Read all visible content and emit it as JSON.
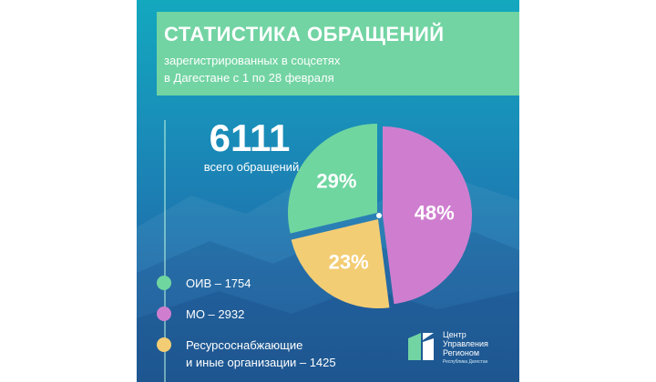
{
  "header": {
    "title": "СТАТИСТИКА ОБРАЩЕНИЙ",
    "subtitle_line1": "зарегистрированных в соцсетях",
    "subtitle_line2": "в Дагестане с 1 по 28 февраля"
  },
  "total": {
    "value": "6111",
    "label": "всего обращений"
  },
  "colors": {
    "oiv": "#6fd6a0",
    "mo": "#cf7ecf",
    "res": "#f3cd74",
    "accent": "#72d4a3"
  },
  "chart_data": {
    "type": "pie",
    "slices": [
      {
        "key": "mo",
        "label": "МО",
        "value": 2932,
        "percent_label": "48%"
      },
      {
        "key": "res",
        "label": "Ресурсоснабжающие и иные организации",
        "value": 1425,
        "percent_label": "23%"
      },
      {
        "key": "oiv",
        "label": "ОИВ",
        "value": 1754,
        "percent_label": "29%"
      }
    ],
    "total": 6111
  },
  "legend": [
    {
      "key": "oiv",
      "line1": "ОИВ – 1754",
      "line2": ""
    },
    {
      "key": "mo",
      "line1": "МО – 2932",
      "line2": ""
    },
    {
      "key": "res",
      "line1": "Ресурсоснабжающие",
      "line2": "и иные организации – 1425"
    }
  ],
  "logo": {
    "line1": "Центр",
    "line2": "Управления",
    "line3": "Регионом",
    "sub": "Республика Дагестан"
  }
}
